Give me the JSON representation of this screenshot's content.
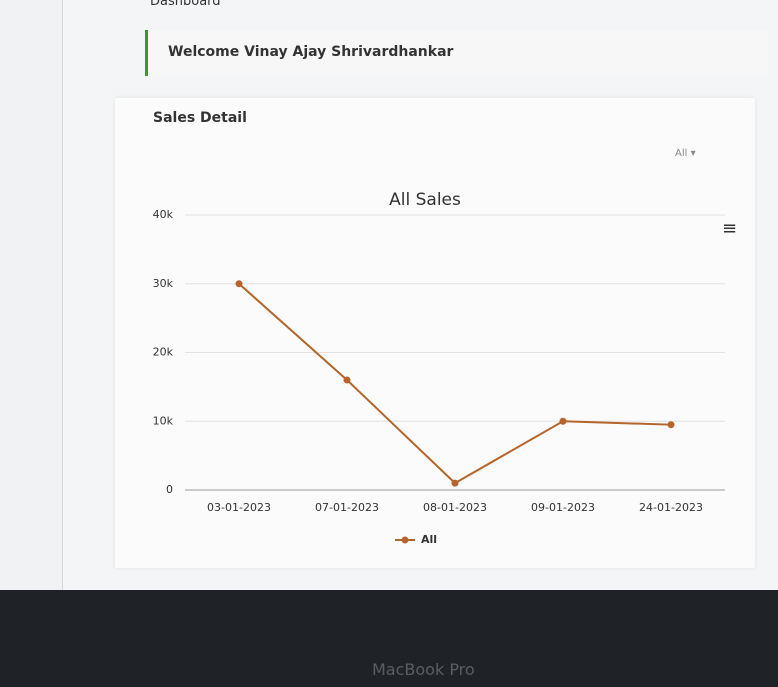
{
  "header": {
    "page_title": "Dashboard",
    "welcome": "Welcome Vinay Ajay Shrivardhankar"
  },
  "card": {
    "title": "Sales Detail",
    "filter": "All"
  },
  "device": "MacBook Pro",
  "chart_data": {
    "type": "line",
    "title": "All Sales",
    "categories": [
      "03-01-2023",
      "07-01-2023",
      "08-01-2023",
      "09-01-2023",
      "24-01-2023"
    ],
    "series": [
      {
        "name": "All",
        "color": "#b5652b",
        "values": [
          30000,
          16000,
          1000,
          10000,
          9500
        ]
      }
    ],
    "ylim": [
      0,
      40000
    ],
    "yticks": [
      {
        "value": 0,
        "label": "0"
      },
      {
        "value": 10000,
        "label": "10k"
      },
      {
        "value": 20000,
        "label": "20k"
      },
      {
        "value": 30000,
        "label": "30k"
      },
      {
        "value": 40000,
        "label": "40k"
      }
    ],
    "grid": true,
    "legend": "bottom"
  }
}
